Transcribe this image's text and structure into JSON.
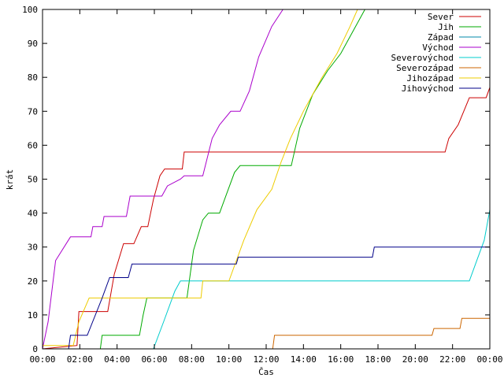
{
  "chart_data": {
    "type": "line",
    "xlabel": "Čas",
    "ylabel": "krát",
    "xlim": [
      0,
      24
    ],
    "ylim": [
      0,
      100
    ],
    "x_ticks": [
      {
        "value": 0,
        "label": "00:00"
      },
      {
        "value": 2,
        "label": "02:00"
      },
      {
        "value": 4,
        "label": "04:00"
      },
      {
        "value": 6,
        "label": "06:00"
      },
      {
        "value": 8,
        "label": "08:00"
      },
      {
        "value": 10,
        "label": "10:00"
      },
      {
        "value": 12,
        "label": "12:00"
      },
      {
        "value": 14,
        "label": "14:00"
      },
      {
        "value": 16,
        "label": "16:00"
      },
      {
        "value": 18,
        "label": "18:00"
      },
      {
        "value": 20,
        "label": "20:00"
      },
      {
        "value": 22,
        "label": "22:00"
      },
      {
        "value": 24,
        "label": "00:00"
      }
    ],
    "y_ticks": [
      0,
      10,
      20,
      30,
      40,
      50,
      60,
      70,
      80,
      90,
      100
    ],
    "grid": false,
    "legend_position": "top-right",
    "series": [
      {
        "name": "Sever",
        "color": "#cc0000",
        "points": [
          [
            0,
            0
          ],
          [
            1.85,
            1
          ],
          [
            1.95,
            11
          ],
          [
            3.5,
            11
          ],
          [
            3.85,
            22
          ],
          [
            4.35,
            31
          ],
          [
            4.9,
            31
          ],
          [
            5.3,
            36
          ],
          [
            5.65,
            36
          ],
          [
            5.95,
            44
          ],
          [
            6.3,
            51
          ],
          [
            6.55,
            53
          ],
          [
            7.5,
            53
          ],
          [
            7.6,
            58
          ],
          [
            21.6,
            58
          ],
          [
            21.8,
            62
          ],
          [
            22.3,
            66
          ],
          [
            22.6,
            70
          ],
          [
            22.9,
            74
          ],
          [
            23.8,
            74
          ],
          [
            24,
            77
          ]
        ]
      },
      {
        "name": "Jih",
        "color": "#00aa00",
        "points": [
          [
            0,
            0
          ],
          [
            3.1,
            0
          ],
          [
            3.2,
            4
          ],
          [
            5.2,
            4
          ],
          [
            5.4,
            10
          ],
          [
            5.6,
            15
          ],
          [
            7.75,
            15
          ],
          [
            8.1,
            29
          ],
          [
            8.6,
            38
          ],
          [
            8.9,
            40
          ],
          [
            9.5,
            40
          ],
          [
            9.9,
            46
          ],
          [
            10.3,
            52
          ],
          [
            10.6,
            54
          ],
          [
            13.35,
            54
          ],
          [
            13.8,
            65
          ],
          [
            14.5,
            75
          ],
          [
            15.3,
            82
          ],
          [
            16,
            87
          ],
          [
            16.7,
            94
          ],
          [
            17.3,
            100
          ]
        ]
      },
      {
        "name": "Západ",
        "color": "#0088aa",
        "points": [
          [
            0,
            0
          ],
          [
            24,
            0
          ]
        ]
      },
      {
        "name": "Východ",
        "color": "#aa00cc",
        "points": [
          [
            0,
            0
          ],
          [
            0.3,
            8
          ],
          [
            0.7,
            26
          ],
          [
            1.5,
            33
          ],
          [
            2.6,
            33
          ],
          [
            2.7,
            36
          ],
          [
            3.2,
            36
          ],
          [
            3.3,
            39
          ],
          [
            4.5,
            39
          ],
          [
            4.7,
            45
          ],
          [
            6.4,
            45
          ],
          [
            6.7,
            48
          ],
          [
            7.4,
            50
          ],
          [
            7.6,
            51
          ],
          [
            8.6,
            51
          ],
          [
            9.1,
            62
          ],
          [
            9.5,
            66
          ],
          [
            10.1,
            70
          ],
          [
            10.6,
            70
          ],
          [
            11.1,
            76
          ],
          [
            11.6,
            86
          ],
          [
            12.3,
            95
          ],
          [
            12.9,
            100
          ]
        ]
      },
      {
        "name": "Severovýchod",
        "color": "#00cccc",
        "points": [
          [
            0,
            0
          ],
          [
            5.95,
            0
          ],
          [
            6.5,
            8
          ],
          [
            7.1,
            17
          ],
          [
            7.4,
            20
          ],
          [
            22.9,
            20
          ],
          [
            23.3,
            26
          ],
          [
            23.7,
            32
          ],
          [
            24,
            41
          ]
        ]
      },
      {
        "name": "Severozápad",
        "color": "#cc6600",
        "points": [
          [
            0,
            0
          ],
          [
            12.35,
            0
          ],
          [
            12.45,
            4
          ],
          [
            20.9,
            4
          ],
          [
            21,
            6
          ],
          [
            22.4,
            6
          ],
          [
            22.5,
            9
          ],
          [
            24,
            9
          ]
        ]
      },
      {
        "name": "Jihozápad",
        "color": "#eecc00",
        "points": [
          [
            0,
            1
          ],
          [
            1.65,
            1
          ],
          [
            1.95,
            8
          ],
          [
            2.5,
            15
          ],
          [
            8.5,
            15
          ],
          [
            8.6,
            20
          ],
          [
            10.0,
            20
          ],
          [
            10.8,
            32
          ],
          [
            11.5,
            41
          ],
          [
            12.3,
            47
          ],
          [
            12.8,
            55
          ],
          [
            13.3,
            62
          ],
          [
            14.0,
            70
          ],
          [
            15.0,
            80
          ],
          [
            15.8,
            87
          ],
          [
            16.5,
            95
          ],
          [
            16.9,
            100
          ]
        ]
      },
      {
        "name": "Jihovýchod",
        "color": "#000088",
        "points": [
          [
            0,
            0
          ],
          [
            1.4,
            0
          ],
          [
            1.5,
            4
          ],
          [
            2.4,
            4
          ],
          [
            3.2,
            15
          ],
          [
            3.6,
            21
          ],
          [
            4.6,
            21
          ],
          [
            4.8,
            25
          ],
          [
            10.4,
            25
          ],
          [
            10.5,
            27
          ],
          [
            17.7,
            27
          ],
          [
            17.8,
            30
          ],
          [
            24,
            30
          ]
        ]
      }
    ]
  }
}
